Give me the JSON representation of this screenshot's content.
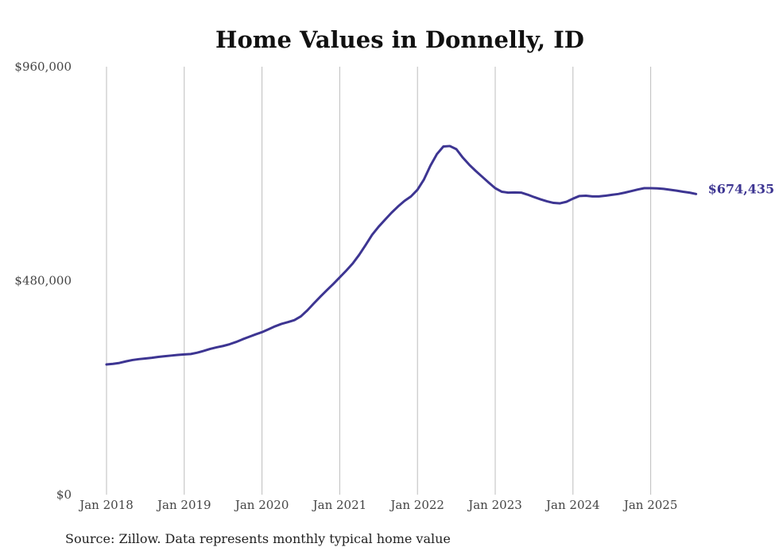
{
  "chart_data": {
    "type": "line",
    "title": "Home Values in Donnelly, ID",
    "xlabel": "",
    "ylabel": "",
    "x_tick_labels": [
      "Jan 2018",
      "Jan 2019",
      "Jan 2020",
      "Jan 2021",
      "Jan 2022",
      "Jan 2023",
      "Jan 2024",
      "Jan 2025"
    ],
    "y_tick_labels": [
      "$0",
      "$480,000",
      "$960,000"
    ],
    "y_ticks": [
      0,
      480000,
      960000
    ],
    "ylim": [
      0,
      960000
    ],
    "grid": "vertical",
    "line_color": "#3d3592",
    "end_label": "$674,435",
    "series": [
      {
        "x": [
          "2018-01",
          "2018-02",
          "2018-03",
          "2018-04",
          "2018-05",
          "2018-06",
          "2018-07",
          "2018-08",
          "2018-09",
          "2018-10",
          "2018-11",
          "2018-12",
          "2019-01",
          "2019-02",
          "2019-03",
          "2019-04",
          "2019-05",
          "2019-06",
          "2019-07",
          "2019-08",
          "2019-09",
          "2019-10",
          "2019-11",
          "2019-12",
          "2020-01",
          "2020-02",
          "2020-03",
          "2020-04",
          "2020-05",
          "2020-06",
          "2020-07",
          "2020-08",
          "2020-09",
          "2020-10",
          "2020-11",
          "2020-12",
          "2021-01",
          "2021-02",
          "2021-03",
          "2021-04",
          "2021-05",
          "2021-06",
          "2021-07",
          "2021-08",
          "2021-09",
          "2021-10",
          "2021-11",
          "2021-12",
          "2022-01",
          "2022-02",
          "2022-03",
          "2022-04",
          "2022-05",
          "2022-06",
          "2022-07",
          "2022-08",
          "2022-09",
          "2022-10",
          "2022-11",
          "2022-12",
          "2023-01",
          "2023-02",
          "2023-03",
          "2023-04",
          "2023-05",
          "2023-06",
          "2023-07",
          "2023-08",
          "2023-09",
          "2023-10",
          "2023-11",
          "2023-12",
          "2024-01",
          "2024-02",
          "2024-03",
          "2024-04",
          "2024-05",
          "2024-06",
          "2024-07",
          "2024-08",
          "2024-09",
          "2024-10",
          "2024-11",
          "2024-12",
          "2025-01",
          "2025-02",
          "2025-03",
          "2025-04",
          "2025-05",
          "2025-06",
          "2025-07",
          "2025-08"
        ],
        "y": [
          292000,
          293500,
          295500,
          299000,
          302000,
          304000,
          305500,
          307000,
          309000,
          310500,
          312000,
          313500,
          314500,
          315500,
          318500,
          322500,
          327000,
          330500,
          333500,
          337500,
          342500,
          348500,
          354000,
          359500,
          364500,
          371000,
          377500,
          383000,
          387000,
          391500,
          400000,
          413500,
          429000,
          444000,
          458500,
          472500,
          487500,
          502500,
          518500,
          538000,
          560000,
          583000,
          601000,
          617000,
          632500,
          646500,
          659000,
          669000,
          684000,
          707000,
          738000,
          764000,
          781000,
          782000,
          775000,
          756000,
          740000,
          726000,
          713000,
          700000,
          687500,
          679500,
          677500,
          678000,
          677500,
          673000,
          667500,
          662500,
          658000,
          654500,
          653500,
          657000,
          664000,
          670000,
          670500,
          669000,
          669000,
          670500,
          672500,
          674500,
          677500,
          681000,
          684500,
          687500,
          687500,
          687000,
          686000,
          684000,
          682000,
          679500,
          677500,
          674435
        ]
      }
    ]
  },
  "source_note": "Source: Zillow. Data represents monthly typical home value"
}
